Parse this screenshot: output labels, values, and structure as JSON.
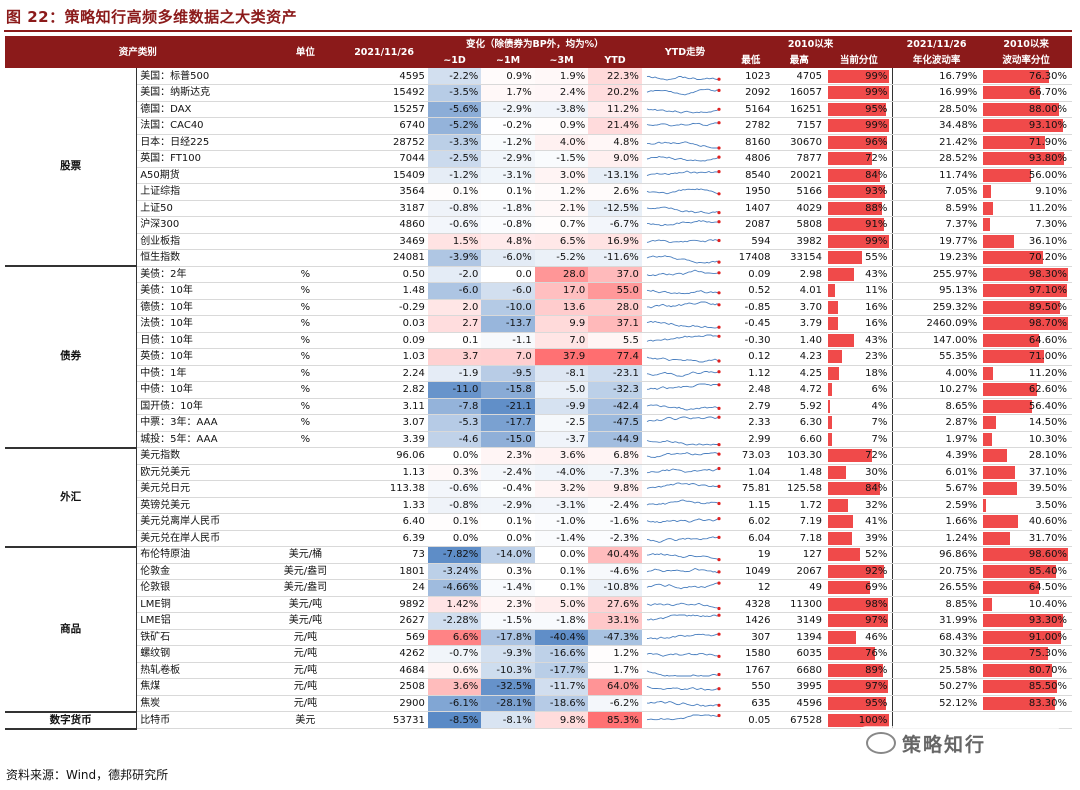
{
  "title": "图 22：策略知行高频多维数据之大类资产",
  "headers": {
    "category": "资产类别",
    "unit": "单位",
    "date": "2021/11/26",
    "change_group": "变化（除债券为BP外，均为%）",
    "d1": "~1D",
    "m1": "~1M",
    "m3": "~3M",
    "ytd": "YTD",
    "ytd_trend": "YTD走势",
    "since2010": "2010以来",
    "low": "最低",
    "high": "最高",
    "pct": "当前分位",
    "vol_date": "2021/11/26",
    "vol_label": "年化波动率",
    "vol_pct_group": "2010以来",
    "vol_pct_label": "波动率分位"
  },
  "groups": [
    {
      "name": "股票",
      "rows": [
        {
          "name": "美国：标普500",
          "unit": "",
          "value": "4595",
          "d1": "-2.2%",
          "m1": "0.9%",
          "m3": "1.9%",
          "ytd": "22.3%",
          "low": "1023",
          "high": "4705",
          "pct": "99%",
          "p": 0.99,
          "vol": "16.79%",
          "vp": "76.30%",
          "v": 0.763
        },
        {
          "name": "美国：纳斯达克",
          "unit": "",
          "value": "15492",
          "d1": "-3.5%",
          "m1": "1.7%",
          "m3": "2.4%",
          "ytd": "20.2%",
          "low": "2092",
          "high": "16057",
          "pct": "99%",
          "p": 0.99,
          "vol": "16.99%",
          "vp": "66.70%",
          "v": 0.667
        },
        {
          "name": "德国：DAX",
          "unit": "",
          "value": "15257",
          "d1": "-5.6%",
          "m1": "-2.9%",
          "m3": "-3.8%",
          "ytd": "11.2%",
          "low": "5164",
          "high": "16251",
          "pct": "95%",
          "p": 0.95,
          "vol": "28.50%",
          "vp": "88.00%",
          "v": 0.88
        },
        {
          "name": "法国：CAC40",
          "unit": "",
          "value": "6740",
          "d1": "-5.2%",
          "m1": "-0.2%",
          "m3": "0.9%",
          "ytd": "21.4%",
          "low": "2782",
          "high": "7157",
          "pct": "99%",
          "p": 0.99,
          "vol": "34.48%",
          "vp": "93.10%",
          "v": 0.931
        },
        {
          "name": "日本：日经225",
          "unit": "",
          "value": "28752",
          "d1": "-3.3%",
          "m1": "-1.2%",
          "m3": "4.0%",
          "ytd": "4.8%",
          "low": "8160",
          "high": "30670",
          "pct": "96%",
          "p": 0.96,
          "vol": "21.42%",
          "vp": "71.90%",
          "v": 0.719
        },
        {
          "name": "英国：FT100",
          "unit": "",
          "value": "7044",
          "d1": "-2.5%",
          "m1": "-2.9%",
          "m3": "-1.5%",
          "ytd": "9.0%",
          "low": "4806",
          "high": "7877",
          "pct": "72%",
          "p": 0.72,
          "vol": "28.52%",
          "vp": "93.80%",
          "v": 0.938
        },
        {
          "name": "A50期货",
          "unit": "",
          "value": "15409",
          "d1": "-1.2%",
          "m1": "-3.1%",
          "m3": "3.0%",
          "ytd": "-13.1%",
          "low": "8540",
          "high": "20021",
          "pct": "84%",
          "p": 0.84,
          "vol": "11.74%",
          "vp": "56.00%",
          "v": 0.56
        },
        {
          "name": "上证综指",
          "unit": "",
          "value": "3564",
          "d1": "0.1%",
          "m1": "0.1%",
          "m3": "1.2%",
          "ytd": "2.6%",
          "low": "1950",
          "high": "5166",
          "pct": "93%",
          "p": 0.93,
          "vol": "7.05%",
          "vp": "9.10%",
          "v": 0.091
        },
        {
          "name": "上证50",
          "unit": "",
          "value": "3187",
          "d1": "-0.8%",
          "m1": "-1.8%",
          "m3": "2.1%",
          "ytd": "-12.5%",
          "low": "1407",
          "high": "4029",
          "pct": "88%",
          "p": 0.88,
          "vol": "8.59%",
          "vp": "11.20%",
          "v": 0.112
        },
        {
          "name": "沪深300",
          "unit": "",
          "value": "4860",
          "d1": "-0.6%",
          "m1": "-0.8%",
          "m3": "0.7%",
          "ytd": "-6.7%",
          "low": "2087",
          "high": "5808",
          "pct": "91%",
          "p": 0.91,
          "vol": "7.37%",
          "vp": "7.30%",
          "v": 0.073
        },
        {
          "name": "创业板指",
          "unit": "",
          "value": "3469",
          "d1": "1.5%",
          "m1": "4.8%",
          "m3": "6.5%",
          "ytd": "16.9%",
          "low": "594",
          "high": "3982",
          "pct": "99%",
          "p": 0.99,
          "vol": "19.77%",
          "vp": "36.10%",
          "v": 0.361
        },
        {
          "name": "恒生指数",
          "unit": "",
          "value": "24081",
          "d1": "-3.9%",
          "m1": "-6.0%",
          "m3": "-5.2%",
          "ytd": "-11.6%",
          "low": "17408",
          "high": "33154",
          "pct": "55%",
          "p": 0.55,
          "vol": "19.23%",
          "vp": "70.20%",
          "v": 0.702
        }
      ]
    },
    {
      "name": "债券",
      "rows": [
        {
          "name": "美债：2年",
          "unit": "%",
          "value": "0.50",
          "d1": "-2.0",
          "m1": "0.0",
          "m3": "28.0",
          "ytd": "37.0",
          "low": "0.09",
          "high": "2.98",
          "pct": "43%",
          "p": 0.43,
          "vol": "255.97%",
          "vp": "98.30%",
          "v": 0.983
        },
        {
          "name": "美债：10年",
          "unit": "%",
          "value": "1.48",
          "d1": "-6.0",
          "m1": "-6.0",
          "m3": "17.0",
          "ytd": "55.0",
          "low": "0.52",
          "high": "4.01",
          "pct": "11%",
          "p": 0.11,
          "vol": "95.13%",
          "vp": "97.10%",
          "v": 0.971
        },
        {
          "name": "德债：10年",
          "unit": "%",
          "value": "-0.29",
          "d1": "2.0",
          "m1": "-10.0",
          "m3": "13.6",
          "ytd": "28.0",
          "low": "-0.85",
          "high": "3.70",
          "pct": "16%",
          "p": 0.16,
          "vol": "259.32%",
          "vp": "89.50%",
          "v": 0.895
        },
        {
          "name": "法债：10年",
          "unit": "%",
          "value": "0.03",
          "d1": "2.7",
          "m1": "-13.7",
          "m3": "9.9",
          "ytd": "37.1",
          "low": "-0.45",
          "high": "3.79",
          "pct": "16%",
          "p": 0.16,
          "vol": "2460.09%",
          "vp": "98.70%",
          "v": 0.987
        },
        {
          "name": "日债：10年",
          "unit": "%",
          "value": "0.09",
          "d1": "0.1",
          "m1": "-1.1",
          "m3": "7.0",
          "ytd": "5.5",
          "low": "-0.30",
          "high": "1.40",
          "pct": "43%",
          "p": 0.43,
          "vol": "147.00%",
          "vp": "64.60%",
          "v": 0.646
        },
        {
          "name": "英债：10年",
          "unit": "%",
          "value": "1.03",
          "d1": "3.7",
          "m1": "7.0",
          "m3": "37.9",
          "ytd": "77.4",
          "low": "0.12",
          "high": "4.23",
          "pct": "23%",
          "p": 0.23,
          "vol": "55.35%",
          "vp": "71.00%",
          "v": 0.71
        },
        {
          "name": "中债：1年",
          "unit": "%",
          "value": "2.24",
          "d1": "-1.9",
          "m1": "-9.5",
          "m3": "-8.1",
          "ytd": "-23.1",
          "low": "1.12",
          "high": "4.25",
          "pct": "18%",
          "p": 0.18,
          "vol": "4.00%",
          "vp": "11.20%",
          "v": 0.112
        },
        {
          "name": "中债：10年",
          "unit": "%",
          "value": "2.82",
          "d1": "-11.0",
          "m1": "-15.8",
          "m3": "-5.0",
          "ytd": "-32.3",
          "low": "2.48",
          "high": "4.72",
          "pct": "6%",
          "p": 0.06,
          "vol": "10.27%",
          "vp": "62.60%",
          "v": 0.626
        },
        {
          "name": "国开债：10年",
          "unit": "%",
          "value": "3.11",
          "d1": "-7.8",
          "m1": "-21.1",
          "m3": "-9.9",
          "ytd": "-42.4",
          "low": "2.79",
          "high": "5.92",
          "pct": "4%",
          "p": 0.04,
          "vol": "8.65%",
          "vp": "56.40%",
          "v": 0.564
        },
        {
          "name": "中票：3年：AAA",
          "unit": "%",
          "value": "3.07",
          "d1": "-5.3",
          "m1": "-17.7",
          "m3": "-2.5",
          "ytd": "-47.5",
          "low": "2.33",
          "high": "6.30",
          "pct": "7%",
          "p": 0.07,
          "vol": "2.87%",
          "vp": "14.50%",
          "v": 0.145
        },
        {
          "name": "城投：5年：AAA",
          "unit": "%",
          "value": "3.39",
          "d1": "-4.6",
          "m1": "-15.0",
          "m3": "-3.7",
          "ytd": "-44.9",
          "low": "2.99",
          "high": "6.60",
          "pct": "7%",
          "p": 0.07,
          "vol": "1.97%",
          "vp": "10.30%",
          "v": 0.103
        }
      ]
    },
    {
      "name": "外汇",
      "rows": [
        {
          "name": "美元指数",
          "unit": "",
          "value": "96.06",
          "d1": "0.0%",
          "m1": "2.3%",
          "m3": "3.6%",
          "ytd": "6.8%",
          "low": "73.03",
          "high": "103.30",
          "pct": "72%",
          "p": 0.72,
          "vol": "4.39%",
          "vp": "28.10%",
          "v": 0.281
        },
        {
          "name": "欧元兑美元",
          "unit": "",
          "value": "1.13",
          "d1": "0.3%",
          "m1": "-2.4%",
          "m3": "-4.0%",
          "ytd": "-7.3%",
          "low": "1.04",
          "high": "1.48",
          "pct": "30%",
          "p": 0.3,
          "vol": "6.01%",
          "vp": "37.10%",
          "v": 0.371
        },
        {
          "name": "美元兑日元",
          "unit": "",
          "value": "113.38",
          "d1": "-0.6%",
          "m1": "-0.4%",
          "m3": "3.2%",
          "ytd": "9.8%",
          "low": "75.81",
          "high": "125.58",
          "pct": "84%",
          "p": 0.84,
          "vol": "5.67%",
          "vp": "39.50%",
          "v": 0.395
        },
        {
          "name": "英镑兑美元",
          "unit": "",
          "value": "1.33",
          "d1": "-0.8%",
          "m1": "-2.9%",
          "m3": "-3.1%",
          "ytd": "-2.4%",
          "low": "1.15",
          "high": "1.72",
          "pct": "32%",
          "p": 0.32,
          "vol": "2.59%",
          "vp": "3.50%",
          "v": 0.035
        },
        {
          "name": "美元兑离岸人民币",
          "unit": "",
          "value": "6.40",
          "d1": "0.1%",
          "m1": "0.1%",
          "m3": "-1.0%",
          "ytd": "-1.6%",
          "low": "6.02",
          "high": "7.19",
          "pct": "41%",
          "p": 0.41,
          "vol": "1.66%",
          "vp": "40.60%",
          "v": 0.406
        },
        {
          "name": "美元兑在岸人民币",
          "unit": "",
          "value": "6.39",
          "d1": "0.0%",
          "m1": "0.0%",
          "m3": "-1.4%",
          "ytd": "-2.3%",
          "low": "6.04",
          "high": "7.18",
          "pct": "39%",
          "p": 0.39,
          "vol": "1.24%",
          "vp": "31.70%",
          "v": 0.317
        }
      ]
    },
    {
      "name": "商品",
      "rows": [
        {
          "name": "布伦特原油",
          "unit": "美元/桶",
          "value": "73",
          "d1": "-7.82%",
          "m1": "-14.0%",
          "m3": "0.0%",
          "ytd": "40.4%",
          "low": "19",
          "high": "127",
          "pct": "52%",
          "p": 0.52,
          "vol": "96.86%",
          "vp": "98.60%",
          "v": 0.986
        },
        {
          "name": "伦敦金",
          "unit": "美元/盎司",
          "value": "1801",
          "d1": "-3.24%",
          "m1": "0.3%",
          "m3": "0.1%",
          "ytd": "-4.6%",
          "low": "1049",
          "high": "2067",
          "pct": "92%",
          "p": 0.92,
          "vol": "20.75%",
          "vp": "85.40%",
          "v": 0.854
        },
        {
          "name": "伦敦银",
          "unit": "美元/盎司",
          "value": "24",
          "d1": "-4.66%",
          "m1": "-1.4%",
          "m3": "0.1%",
          "ytd": "-10.8%",
          "low": "12",
          "high": "49",
          "pct": "69%",
          "p": 0.69,
          "vol": "26.55%",
          "vp": "64.50%",
          "v": 0.645
        },
        {
          "name": "LME铜",
          "unit": "美元/吨",
          "value": "9892",
          "d1": "1.42%",
          "m1": "2.3%",
          "m3": "5.0%",
          "ytd": "27.6%",
          "low": "4328",
          "high": "11300",
          "pct": "98%",
          "p": 0.98,
          "vol": "8.85%",
          "vp": "10.40%",
          "v": 0.104
        },
        {
          "name": "LME铝",
          "unit": "美元/吨",
          "value": "2627",
          "d1": "-2.28%",
          "m1": "-1.5%",
          "m3": "-1.8%",
          "ytd": "33.1%",
          "low": "1426",
          "high": "3149",
          "pct": "97%",
          "p": 0.97,
          "vol": "31.99%",
          "vp": "93.30%",
          "v": 0.933
        },
        {
          "name": "铁矿石",
          "unit": "元/吨",
          "value": "569",
          "d1": "6.6%",
          "m1": "-17.8%",
          "m3": "-40.4%",
          "ytd": "-47.3%",
          "low": "307",
          "high": "1394",
          "pct": "46%",
          "p": 0.46,
          "vol": "68.43%",
          "vp": "91.00%",
          "v": 0.91
        },
        {
          "name": "螺纹钢",
          "unit": "元/吨",
          "value": "4262",
          "d1": "-0.7%",
          "m1": "-9.3%",
          "m3": "-16.6%",
          "ytd": "1.2%",
          "low": "1580",
          "high": "6035",
          "pct": "76%",
          "p": 0.76,
          "vol": "30.32%",
          "vp": "75.30%",
          "v": 0.753
        },
        {
          "name": "热轧卷板",
          "unit": "元/吨",
          "value": "4684",
          "d1": "0.6%",
          "m1": "-10.3%",
          "m3": "-17.7%",
          "ytd": "1.7%",
          "low": "1767",
          "high": "6680",
          "pct": "89%",
          "p": 0.89,
          "vol": "25.58%",
          "vp": "80.70%",
          "v": 0.807
        },
        {
          "name": "焦煤",
          "unit": "元/吨",
          "value": "2508",
          "d1": "3.6%",
          "m1": "-32.5%",
          "m3": "-11.7%",
          "ytd": "64.0%",
          "low": "550",
          "high": "3995",
          "pct": "97%",
          "p": 0.97,
          "vol": "50.27%",
          "vp": "85.50%",
          "v": 0.855
        },
        {
          "name": "焦炭",
          "unit": "元/吨",
          "value": "2900",
          "d1": "-6.1%",
          "m1": "-28.1%",
          "m3": "-18.6%",
          "ytd": "-6.2%",
          "low": "635",
          "high": "4596",
          "pct": "95%",
          "p": 0.95,
          "vol": "52.12%",
          "vp": "83.30%",
          "v": 0.833
        }
      ]
    },
    {
      "name": "数字货币",
      "rows": [
        {
          "name": "比特币",
          "unit": "美元",
          "value": "53731",
          "d1": "-8.5%",
          "m1": "-8.1%",
          "m3": "9.8%",
          "ytd": "85.3%",
          "low": "0.05",
          "high": "67528",
          "pct": "100%",
          "p": 1.0,
          "vol": "",
          "vp": "",
          "v": 0
        }
      ]
    }
  ],
  "footer": "资料来源：Wind，德邦研究所",
  "watermark": "策略知行",
  "colors": {
    "header_bg": "#8b1a1a",
    "pos": "#f8696b",
    "neg": "#5a8ac6",
    "bar": "#f04a4a"
  }
}
